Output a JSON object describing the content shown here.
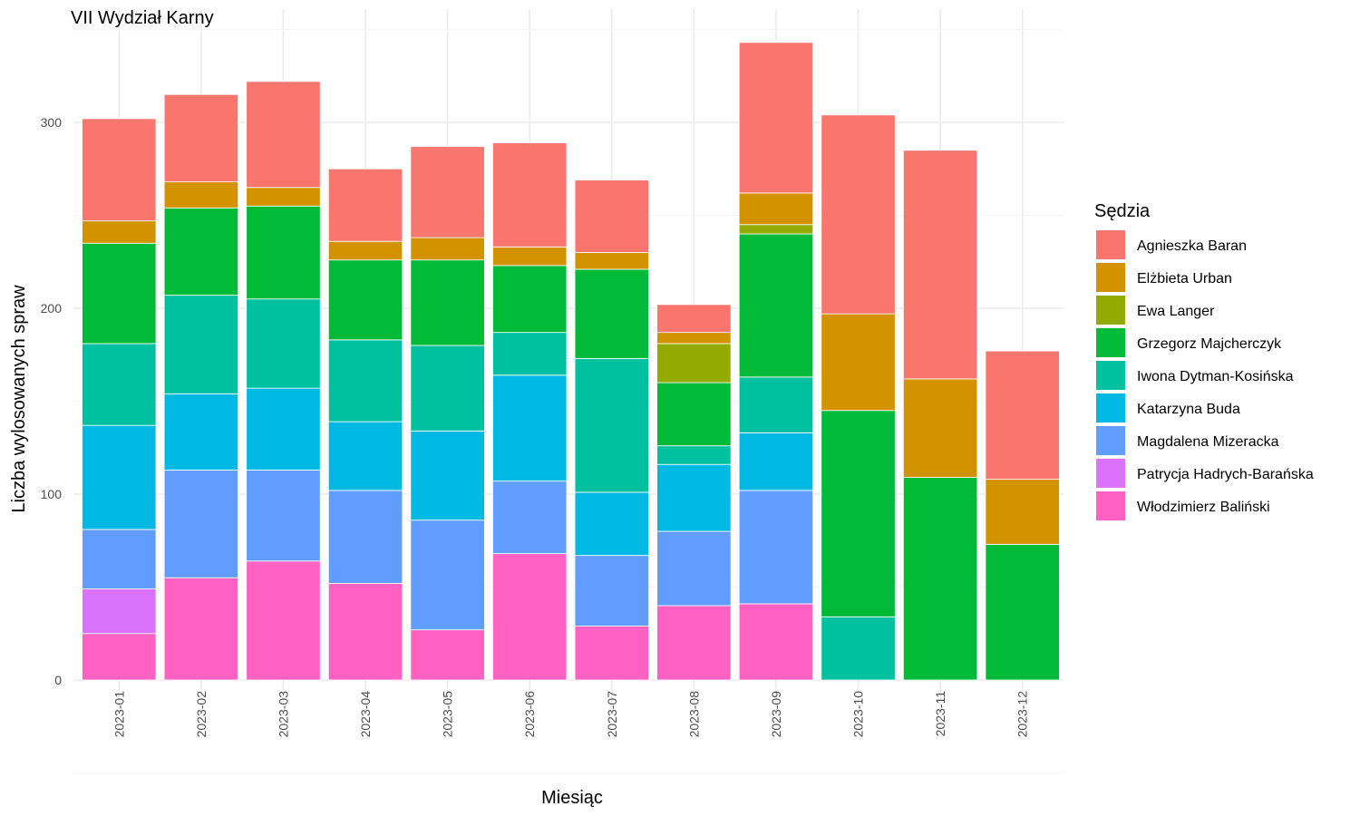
{
  "chart_data": {
    "type": "bar",
    "stacked": true,
    "title": "VII Wydział Karny",
    "xlabel": "Miesiąc",
    "ylabel": "Liczba wylosowanych spraw",
    "ylim": [
      0,
      350
    ],
    "yticks": [
      0,
      100,
      200,
      300
    ],
    "grid": true,
    "legend_title": "Sędzia",
    "legend_position": "right",
    "categories": [
      "2023-01",
      "2023-02",
      "2023-03",
      "2023-04",
      "2023-05",
      "2023-06",
      "2023-07",
      "2023-08",
      "2023-09",
      "2023-10",
      "2023-11",
      "2023-12"
    ],
    "series": [
      {
        "name": "Agnieszka Baran",
        "color": "#F8766D",
        "values": [
          55,
          47,
          57,
          39,
          49,
          56,
          39,
          15,
          81,
          107,
          123,
          69
        ]
      },
      {
        "name": "Elżbieta Urban",
        "color": "#D39200",
        "values": [
          12,
          14,
          10,
          10,
          12,
          10,
          9,
          6,
          17,
          52,
          53,
          35
        ]
      },
      {
        "name": "Ewa Langer",
        "color": "#93AA00",
        "values": [
          0,
          0,
          0,
          0,
          0,
          0,
          0,
          21,
          5,
          0,
          0,
          0
        ]
      },
      {
        "name": "Grzegorz Majcherczyk",
        "color": "#00BA38",
        "values": [
          54,
          47,
          50,
          43,
          46,
          36,
          48,
          34,
          77,
          111,
          109,
          73
        ]
      },
      {
        "name": "Iwona Dytman-Kosińska",
        "color": "#00C19F",
        "values": [
          44,
          53,
          48,
          44,
          46,
          23,
          72,
          10,
          30,
          34,
          0,
          0
        ]
      },
      {
        "name": "Katarzyna Buda",
        "color": "#00B9E3",
        "values": [
          56,
          41,
          44,
          37,
          48,
          57,
          34,
          36,
          31,
          0,
          0,
          0
        ]
      },
      {
        "name": "Magdalena Mizeracka",
        "color": "#619CFF",
        "values": [
          32,
          58,
          49,
          50,
          59,
          39,
          38,
          40,
          61,
          0,
          0,
          0
        ]
      },
      {
        "name": "Patrycja Hadrych-Barańska",
        "color": "#DB72FB",
        "values": [
          24,
          0,
          0,
          0,
          0,
          0,
          0,
          0,
          0,
          0,
          0,
          0
        ]
      },
      {
        "name": "Włodzimierz Baliński",
        "color": "#FF61C3",
        "values": [
          25,
          55,
          64,
          52,
          27,
          68,
          29,
          40,
          41,
          0,
          0,
          0
        ]
      }
    ]
  }
}
